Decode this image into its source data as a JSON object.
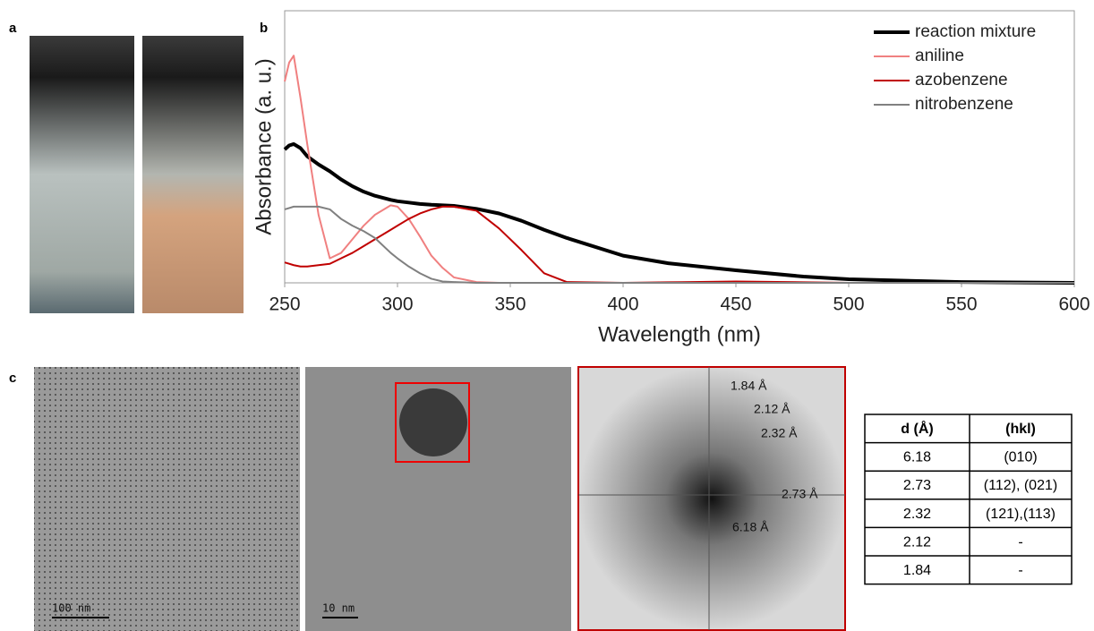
{
  "panels": [
    "a",
    "b",
    "c"
  ],
  "chart_data": {
    "type": "line",
    "x_label": "Wavelength (nm)",
    "y_label": "Absorbance (a. u.)",
    "x": [
      250,
      252,
      254,
      257,
      260,
      265,
      270,
      275,
      280,
      285,
      290,
      297,
      300,
      305,
      310,
      315,
      320,
      325,
      335,
      345,
      355,
      365,
      375,
      400,
      420,
      450,
      480,
      500,
      550,
      600
    ],
    "xlim": [
      250,
      600
    ],
    "xticks": [
      250,
      300,
      350,
      400,
      450,
      500,
      550,
      600
    ],
    "ylim": [
      0,
      1
    ],
    "legend": "upper right",
    "series": [
      {
        "name": "reaction mixture",
        "color": "#000000",
        "width": 4,
        "values": [
          0.49,
          0.505,
          0.51,
          0.495,
          0.465,
          0.435,
          0.41,
          0.38,
          0.355,
          0.335,
          0.32,
          0.305,
          0.3,
          0.295,
          0.29,
          0.287,
          0.285,
          0.283,
          0.272,
          0.255,
          0.228,
          0.195,
          0.165,
          0.1,
          0.072,
          0.046,
          0.023,
          0.013,
          0.003,
          0
        ]
      },
      {
        "name": "aniline",
        "color": "#f08080",
        "width": 2,
        "values": [
          0.74,
          0.81,
          0.835,
          0.68,
          0.51,
          0.25,
          0.09,
          0.11,
          0.16,
          0.21,
          0.25,
          0.285,
          0.28,
          0.235,
          0.17,
          0.1,
          0.055,
          0.02,
          0.003,
          0,
          0,
          0,
          0,
          0,
          0,
          0,
          0,
          0,
          0,
          0
        ]
      },
      {
        "name": "azobenzene",
        "color": "#c00000",
        "width": 2,
        "values": [
          0.075,
          0.07,
          0.065,
          0.06,
          0.06,
          0.065,
          0.07,
          0.09,
          0.11,
          0.135,
          0.16,
          0.195,
          0.21,
          0.235,
          0.255,
          0.27,
          0.28,
          0.28,
          0.265,
          0.2,
          0.12,
          0.035,
          0.003,
          0,
          0.002,
          0.005,
          0.002,
          0,
          0,
          0
        ]
      },
      {
        "name": "nitrobenzene",
        "color": "#808080",
        "width": 2,
        "values": [
          0.27,
          0.275,
          0.28,
          0.28,
          0.28,
          0.28,
          0.27,
          0.235,
          0.21,
          0.19,
          0.165,
          0.11,
          0.09,
          0.06,
          0.035,
          0.015,
          0.005,
          0.003,
          0,
          0,
          0,
          0,
          0,
          0,
          0,
          0,
          0,
          0,
          0,
          0
        ]
      }
    ]
  },
  "images": {
    "scale_bars": [
      "100 nm",
      "10 nm"
    ],
    "fft_labels": [
      "1.84 Å",
      "2.12 Å",
      "2.32 Å",
      "2.73 Å",
      "6.18 Å"
    ]
  },
  "table": {
    "header": [
      "d (Å)",
      "(hkl)"
    ],
    "rows": [
      [
        "6.18",
        "(010)"
      ],
      [
        "2.73",
        "(112), (021)"
      ],
      [
        "2.32",
        "(121),(113)"
      ],
      [
        "2.12",
        "-"
      ],
      [
        "1.84",
        "-"
      ]
    ]
  }
}
